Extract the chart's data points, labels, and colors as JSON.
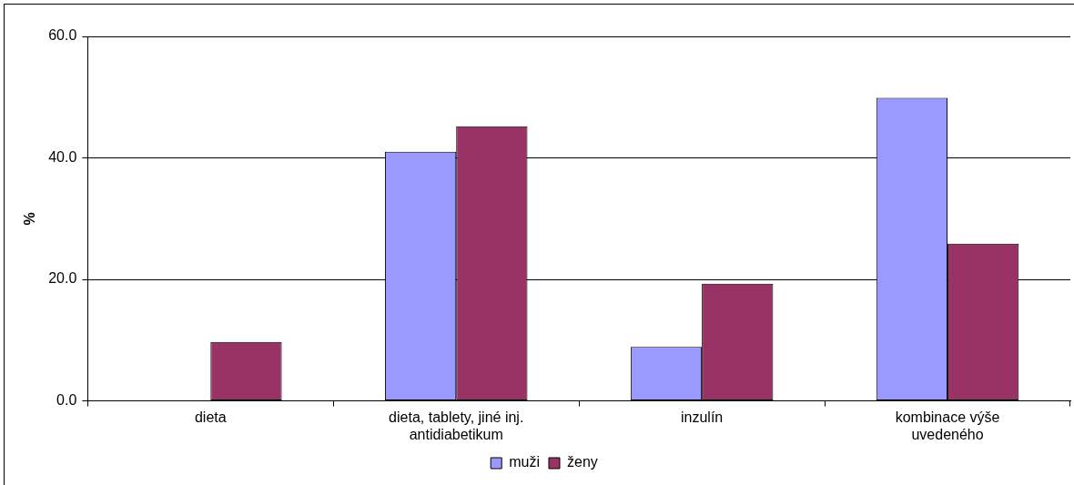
{
  "chart_data": {
    "type": "bar",
    "ylabel": "%",
    "categories": [
      "dieta",
      "dieta, tablety, jiné inj. antidiabetikum",
      "inzulín",
      "kombinace výše uvedeného"
    ],
    "series": [
      {
        "name": "muži",
        "color": "#9999ff",
        "values": [
          0,
          41.0,
          8.9,
          49.9
        ]
      },
      {
        "name": "ženy",
        "color": "#993366",
        "values": [
          9.7,
          45.2,
          19.3,
          25.9
        ]
      }
    ],
    "ylim": [
      0,
      60
    ],
    "yticks": [
      {
        "value": 0,
        "label": "0.0"
      },
      {
        "value": 20,
        "label": "20.0"
      },
      {
        "value": 40,
        "label": "40.0"
      },
      {
        "value": 60,
        "label": "60.0"
      }
    ],
    "grid": "y",
    "legend": "bottom"
  }
}
